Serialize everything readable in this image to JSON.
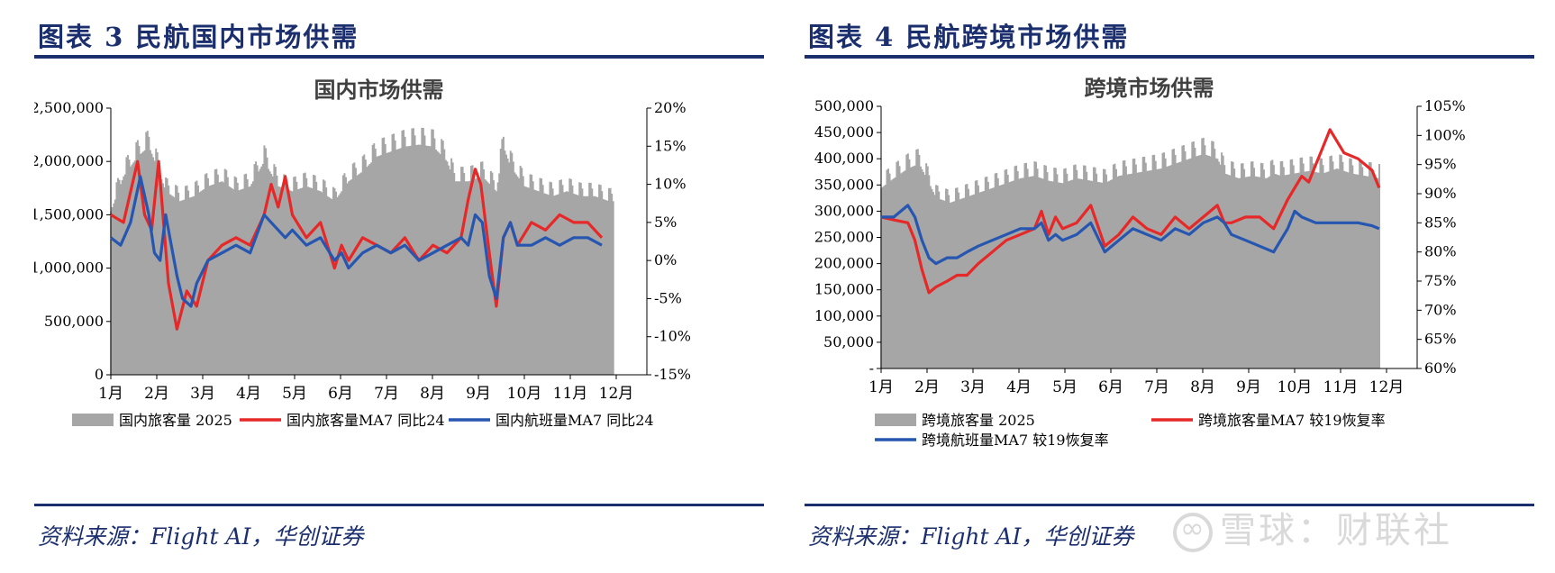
{
  "left": {
    "figure_title": "图表 3   民航国内市场供需",
    "source": "资料来源：Flight AI，华创证券",
    "colors": {
      "bars": "#a6a6a6",
      "red": "#e62828",
      "blue": "#2656b0"
    },
    "chart_data": {
      "type": "bar",
      "title": "国内市场供需",
      "xlabel": "",
      "ylabel": "",
      "x_ticks": [
        "1月",
        "2月",
        "3月",
        "4月",
        "5月",
        "6月",
        "7月",
        "8月",
        "9月",
        "10月",
        "11月",
        "12月"
      ],
      "y_ticks": [
        "0",
        "500,000",
        "1,000,000",
        "1,500,000",
        "2,000,000",
        "2,500,000"
      ],
      "y2_ticks": [
        "-15%",
        "-10%",
        "-5%",
        "0%",
        "5%",
        "10%",
        "15%",
        "20%"
      ],
      "ylim": [
        0,
        2500000
      ],
      "y2lim": [
        -15,
        20
      ],
      "legend_position": "bottom",
      "series": [
        {
          "name": "国内旅客量 2025",
          "type": "bar",
          "axis": "left",
          "x_day": [
            1,
            10,
            20,
            28,
            35,
            40,
            50,
            60,
            70,
            80,
            90,
            100,
            110,
            120,
            130,
            140,
            150,
            160,
            170,
            180,
            190,
            200,
            210,
            220,
            230,
            240,
            245,
            255,
            265,
            275,
            280,
            285,
            295,
            305,
            315,
            325,
            335,
            345,
            355
          ],
          "values": [
            1650000,
            2000000,
            2200000,
            2300000,
            2050000,
            1850000,
            1750000,
            1800000,
            1900000,
            1950000,
            1850000,
            1900000,
            2150000,
            1900000,
            1850000,
            1900000,
            1850000,
            1750000,
            1950000,
            2050000,
            2200000,
            2250000,
            2300000,
            2320000,
            2300000,
            2150000,
            1950000,
            1950000,
            2000000,
            1850000,
            2300000,
            2100000,
            1900000,
            1850000,
            1800000,
            1850000,
            1800000,
            1800000,
            1750000
          ]
        },
        {
          "name": "国内旅客量MA7 同比24",
          "type": "line",
          "axis": "right",
          "x_day": [
            1,
            10,
            15,
            20,
            25,
            30,
            35,
            42,
            48,
            55,
            62,
            70,
            80,
            90,
            100,
            110,
            115,
            120,
            125,
            130,
            140,
            150,
            160,
            165,
            170,
            180,
            190,
            200,
            210,
            220,
            230,
            240,
            250,
            255,
            260,
            264,
            270,
            275,
            280,
            285,
            290,
            300,
            310,
            320,
            330,
            340,
            350
          ],
          "values": [
            6,
            5,
            9,
            13,
            6,
            4,
            13,
            -3,
            -9,
            -4,
            -6,
            0,
            2,
            3,
            2,
            6,
            10,
            7,
            11,
            6,
            3,
            5,
            -1,
            2,
            0,
            3,
            2,
            1,
            3,
            0,
            2,
            1,
            3,
            8,
            12,
            10,
            1,
            -6,
            3,
            5,
            2,
            5,
            4,
            6,
            5,
            5,
            3
          ]
        },
        {
          "name": "国内航班量MA7 同比24",
          "type": "line",
          "axis": "right",
          "x_day": [
            1,
            8,
            15,
            22,
            28,
            32,
            36,
            40,
            48,
            52,
            58,
            62,
            70,
            80,
            90,
            100,
            110,
            115,
            120,
            125,
            130,
            140,
            150,
            160,
            165,
            170,
            180,
            190,
            200,
            210,
            220,
            230,
            240,
            250,
            255,
            260,
            265,
            270,
            275,
            280,
            285,
            290,
            300,
            310,
            320,
            330,
            340,
            350
          ],
          "values": [
            3,
            2,
            5,
            11,
            6,
            1,
            0,
            6,
            -2,
            -5,
            -6,
            -3,
            0,
            1,
            2,
            1,
            6,
            5,
            4,
            3,
            4,
            2,
            3,
            0,
            1,
            -1,
            1,
            2,
            1,
            2,
            0,
            1,
            2,
            3,
            2,
            6,
            5,
            -2,
            -5,
            3,
            5,
            2,
            2,
            3,
            2,
            3,
            3,
            2
          ]
        }
      ]
    }
  },
  "right": {
    "figure_title": "图表 4   民航跨境市场供需",
    "source": "资料来源：Flight AI，华创证券",
    "colors": {
      "bars": "#a6a6a6",
      "red": "#e62828",
      "blue": "#2656b0"
    },
    "chart_data": {
      "type": "bar",
      "title": "跨境市场供需",
      "xlabel": "",
      "ylabel": "",
      "x_ticks": [
        "1月",
        "2月",
        "3月",
        "4月",
        "5月",
        "6月",
        "7月",
        "8月",
        "9月",
        "10月",
        "11月",
        "12月"
      ],
      "y_ticks": [
        "-",
        "50,000",
        "100,000",
        "150,000",
        "200,000",
        "250,000",
        "300,000",
        "350,000",
        "400,000",
        "450,000",
        "500,000"
      ],
      "y2_ticks": [
        "60%",
        "65%",
        "70%",
        "75%",
        "80%",
        "85%",
        "90%",
        "95%",
        "100%",
        "105%"
      ],
      "ylim": [
        0,
        500000
      ],
      "y2lim": [
        60,
        105
      ],
      "legend_position": "bottom",
      "series": [
        {
          "name": "跨境旅客量 2025",
          "type": "bar",
          "axis": "left",
          "x_day": [
            1,
            10,
            20,
            28,
            35,
            40,
            50,
            60,
            70,
            80,
            90,
            100,
            110,
            120,
            130,
            140,
            150,
            160,
            170,
            180,
            190,
            200,
            210,
            220,
            230,
            240,
            245,
            255,
            265,
            275,
            280,
            285,
            295,
            305,
            315,
            325,
            335,
            345,
            355
          ],
          "values": [
            370000,
            390000,
            410000,
            420000,
            380000,
            350000,
            340000,
            350000,
            360000,
            370000,
            380000,
            390000,
            395000,
            385000,
            380000,
            390000,
            385000,
            380000,
            395000,
            400000,
            405000,
            410000,
            420000,
            430000,
            440000,
            430000,
            400000,
            390000,
            395000,
            390000,
            400000,
            395000,
            400000,
            405000,
            400000,
            410000,
            400000,
            395000,
            390000
          ]
        },
        {
          "name": "跨境旅客量MA7 较19恢复率",
          "type": "line",
          "axis": "right",
          "x_day": [
            1,
            10,
            20,
            25,
            30,
            35,
            40,
            48,
            55,
            62,
            70,
            80,
            90,
            100,
            110,
            115,
            120,
            125,
            130,
            140,
            150,
            160,
            170,
            180,
            190,
            200,
            210,
            220,
            230,
            240,
            245,
            250,
            260,
            270,
            280,
            290,
            300,
            305,
            310,
            315,
            320,
            330,
            340,
            350,
            355
          ],
          "values": [
            86,
            85.5,
            85,
            82,
            77,
            73,
            74,
            75,
            76,
            76,
            78,
            80,
            82,
            83,
            84,
            87,
            83,
            86,
            84,
            85,
            88,
            81,
            83,
            86,
            84,
            83,
            86,
            84,
            86,
            88,
            85,
            85,
            86,
            86,
            84,
            89,
            93,
            92,
            95,
            98,
            101,
            97,
            96,
            94,
            91
          ]
        },
        {
          "name": "跨境航班量MA7 较19恢复率",
          "type": "line",
          "axis": "right",
          "x_day": [
            1,
            10,
            20,
            25,
            30,
            35,
            40,
            48,
            55,
            62,
            70,
            80,
            90,
            100,
            110,
            115,
            120,
            125,
            130,
            140,
            150,
            160,
            170,
            180,
            190,
            200,
            210,
            220,
            230,
            240,
            245,
            250,
            260,
            270,
            280,
            285,
            290,
            295,
            300,
            310,
            320,
            330,
            340,
            350,
            355
          ],
          "values": [
            86,
            86,
            88,
            86,
            82,
            79,
            78,
            79,
            79,
            80,
            81,
            82,
            83,
            84,
            84,
            85,
            82,
            83,
            82,
            83,
            85,
            80,
            82,
            84,
            83,
            82,
            84,
            83,
            85,
            86,
            85,
            83,
            82,
            81,
            80,
            82,
            84,
            87,
            86,
            85,
            85,
            85,
            85,
            84.5,
            84
          ]
        }
      ]
    }
  },
  "watermark": "雪球：财联社"
}
